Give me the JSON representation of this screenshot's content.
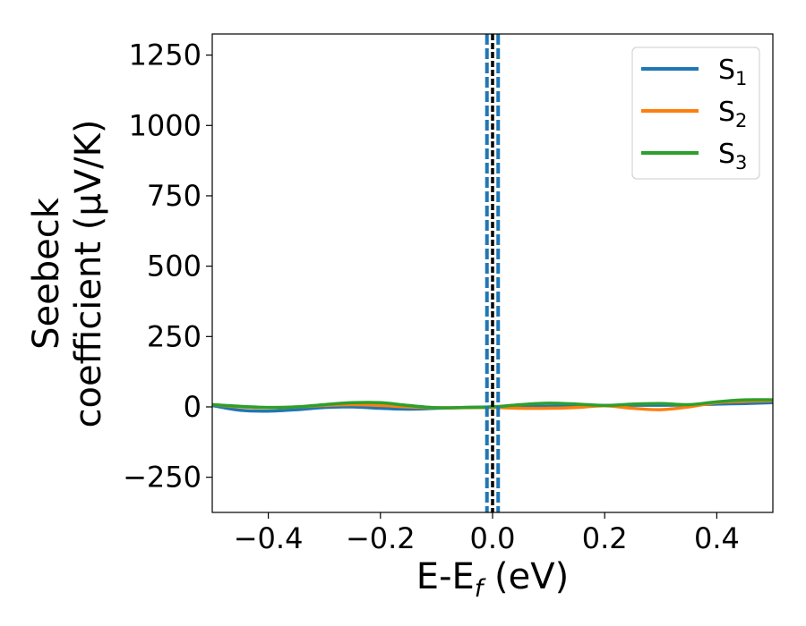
{
  "chart_data": {
    "type": "line",
    "title": "",
    "xlabel": "E-E",
    "xlabel_sub": "f",
    "xlabel_unit": " (eV)",
    "ylabel_line1": "Seebeck",
    "ylabel_line2": "coefficient  (μV/K)",
    "xlim": [
      -0.5,
      0.5
    ],
    "ylim": [
      -375,
      1325
    ],
    "xticks": [
      -0.4,
      -0.2,
      0.0,
      0.2,
      0.4
    ],
    "xtick_labels": [
      "−0.4",
      "−0.2",
      "0.0",
      "0.2",
      "0.4"
    ],
    "yticks": [
      -250,
      0,
      250,
      500,
      750,
      1000,
      1250
    ],
    "ytick_labels": [
      "−250",
      "0",
      "250",
      "500",
      "750",
      "1000",
      "1250"
    ],
    "legend_position": "top-right",
    "vertical_lines": [
      {
        "x": -0.01,
        "style": "dashed",
        "color": "#1f77b4"
      },
      {
        "x": 0.01,
        "style": "dashed",
        "color": "#1f77b4"
      },
      {
        "x": 0.0,
        "style": "dashed",
        "color": "#000000"
      }
    ],
    "series": [
      {
        "name": "S",
        "name_sub": "1",
        "color": "#1f77b4",
        "x": [
          -0.5,
          -0.45,
          -0.4,
          -0.35,
          -0.3,
          -0.25,
          -0.2,
          -0.15,
          -0.1,
          -0.05,
          0.0,
          0.05,
          0.1,
          0.15,
          0.2,
          0.25,
          0.3,
          0.35,
          0.4,
          0.45,
          0.5
        ],
        "y": [
          5,
          -12,
          -15,
          -10,
          -2,
          0,
          -5,
          -8,
          -5,
          -2,
          0,
          1,
          2,
          3,
          5,
          6,
          6,
          7,
          10,
          12,
          15
        ]
      },
      {
        "name": "S",
        "name_sub": "2",
        "color": "#ff7f0e",
        "x": [
          -0.5,
          -0.45,
          -0.4,
          -0.35,
          -0.3,
          -0.25,
          -0.2,
          -0.15,
          -0.1,
          -0.05,
          0.0,
          0.05,
          0.1,
          0.15,
          0.2,
          0.25,
          0.3,
          0.35,
          0.4,
          0.45,
          0.5
        ],
        "y": [
          8,
          0,
          -3,
          0,
          5,
          8,
          5,
          0,
          -3,
          -3,
          -2,
          -5,
          -5,
          -2,
          4,
          -5,
          -10,
          0,
          15,
          20,
          22
        ]
      },
      {
        "name": "S",
        "name_sub": "3",
        "color": "#2ca02c",
        "x": [
          -0.5,
          -0.45,
          -0.4,
          -0.35,
          -0.3,
          -0.25,
          -0.2,
          -0.15,
          -0.1,
          -0.05,
          0.0,
          0.05,
          0.1,
          0.15,
          0.2,
          0.25,
          0.3,
          0.35,
          0.4,
          0.45,
          0.5
        ],
        "y": [
          8,
          2,
          -2,
          0,
          8,
          15,
          15,
          5,
          -3,
          -2,
          0,
          8,
          13,
          10,
          5,
          10,
          12,
          8,
          18,
          25,
          25
        ]
      }
    ]
  }
}
